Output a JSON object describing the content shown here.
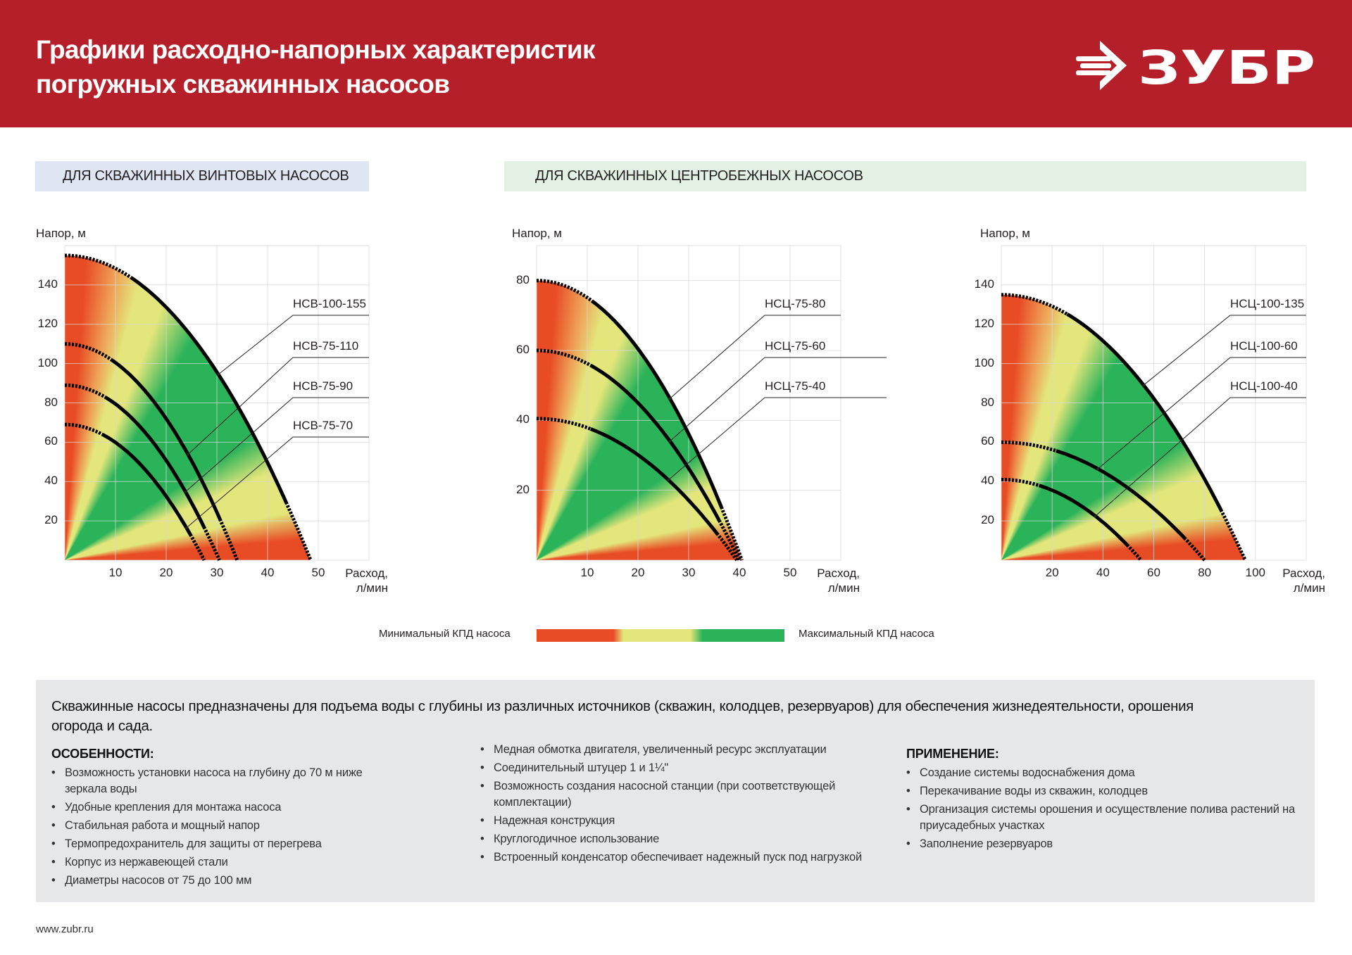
{
  "header": {
    "title_line1": "Графики расходно-напорных характеристик",
    "title_line2": "погружных скважинных насосов",
    "logo_text": "ЗУБР",
    "background": "#b51f29"
  },
  "sections": {
    "screw": "ДЛЯ СКВАЖИННЫХ ВИНТОВЫХ НАСОСОВ",
    "centrifugal": "ДЛЯ СКВАЖИННЫХ ЦЕНТРОБЕЖНЫХ НАСОСОВ"
  },
  "chart_data": [
    {
      "type": "line",
      "ylabel": "Напор, м",
      "xlabel": "Расход,",
      "xlabel_unit": "л/мин",
      "xlim": [
        0,
        60
      ],
      "ylim": [
        0,
        160
      ],
      "xticks": [
        10,
        20,
        30,
        40,
        50
      ],
      "yticks": [
        20,
        40,
        60,
        80,
        100,
        120,
        140
      ],
      "grid": true,
      "series": [
        {
          "name": "НСВ-100-155",
          "head_at_zero_flow": 155,
          "flow_at_zero_head": 48.5
        },
        {
          "name": "НСВ-75-110",
          "head_at_zero_flow": 110,
          "flow_at_zero_head": 34
        },
        {
          "name": "НСВ-75-90",
          "head_at_zero_flow": 89,
          "flow_at_zero_head": 30.5
        },
        {
          "name": "НСВ-75-70",
          "head_at_zero_flow": 69,
          "flow_at_zero_head": 27.5
        }
      ]
    },
    {
      "type": "line",
      "ylabel": "Напор, м",
      "xlabel": "Расход,",
      "xlabel_unit": "л/мин",
      "xlim": [
        0,
        60
      ],
      "ylim": [
        0,
        90
      ],
      "xticks": [
        10,
        20,
        30,
        40,
        50
      ],
      "yticks": [
        20,
        40,
        60,
        80
      ],
      "grid": true,
      "series": [
        {
          "name": "НСЦ-75-80",
          "head_at_zero_flow": 80,
          "flow_at_zero_head": 40.5
        },
        {
          "name": "НСЦ-75-60",
          "head_at_zero_flow": 60,
          "flow_at_zero_head": 40
        },
        {
          "name": "НСЦ-75-40",
          "head_at_zero_flow": 40.5,
          "flow_at_zero_head": 39.5
        }
      ]
    },
    {
      "type": "line",
      "ylabel": "Напор, м",
      "xlabel": "Расход,",
      "xlabel_unit": "л/мин",
      "xlim": [
        0,
        120
      ],
      "ylim": [
        0,
        160
      ],
      "xticks": [
        20,
        40,
        60,
        80,
        100
      ],
      "yticks": [
        20,
        40,
        60,
        80,
        100,
        120,
        140
      ],
      "grid": true,
      "series": [
        {
          "name": "НСЦ-100-135",
          "head_at_zero_flow": 135,
          "flow_at_zero_head": 96
        },
        {
          "name": "НСЦ-100-60",
          "head_at_zero_flow": 60,
          "flow_at_zero_head": 80
        },
        {
          "name": "НСЦ-100-40",
          "head_at_zero_flow": 41,
          "flow_at_zero_head": 55
        }
      ]
    }
  ],
  "legend": {
    "min_label": "Минимальный КПД насоса",
    "max_label": "Максимальный КПД насоса",
    "colors": {
      "min": "#e84c25",
      "mid": "#e3e67a",
      "max": "#2bb35a"
    }
  },
  "info": {
    "intro": "Скважинные насосы предназначены для подъема воды с глубины из различных источников (скважин, колодцев, резервуаров) для обеспечения жизнедеятельности, орошения огорода и сада.",
    "features_title": "ОСОБЕННОСТИ:",
    "features_col1": [
      "Возможность установки насоса на глубину до 70 м ниже зеркала воды",
      "Удобные крепления для монтажа насоса",
      "Стабильная работа и мощный напор",
      "Термопредохранитель для защиты от перегрева",
      "Корпус из нержавеющей стали",
      "Диаметры насосов от 75 до 100 мм"
    ],
    "features_col2": [
      "Медная обмотка двигателя, увеличенный ресурс эксплуатации",
      "Соединительный штуцер 1 и 1¼\"",
      "Возможность создания насосной станции (при соответствующей комплектации)",
      "Надежная конструкция",
      "Круглогодичное использование",
      "Встроенный конденсатор обеспечивает надежный пуск под нагрузкой"
    ],
    "application_title": "ПРИМЕНЕНИЕ:",
    "application": [
      "Создание системы водоснабжения дома",
      "Перекачивание воды из скважин, колодцев",
      "Организация системы орошения и осуществление полива растений на приусадебных участках",
      "Заполнение резервуаров"
    ]
  },
  "footer": {
    "url": "www.zubr.ru"
  }
}
